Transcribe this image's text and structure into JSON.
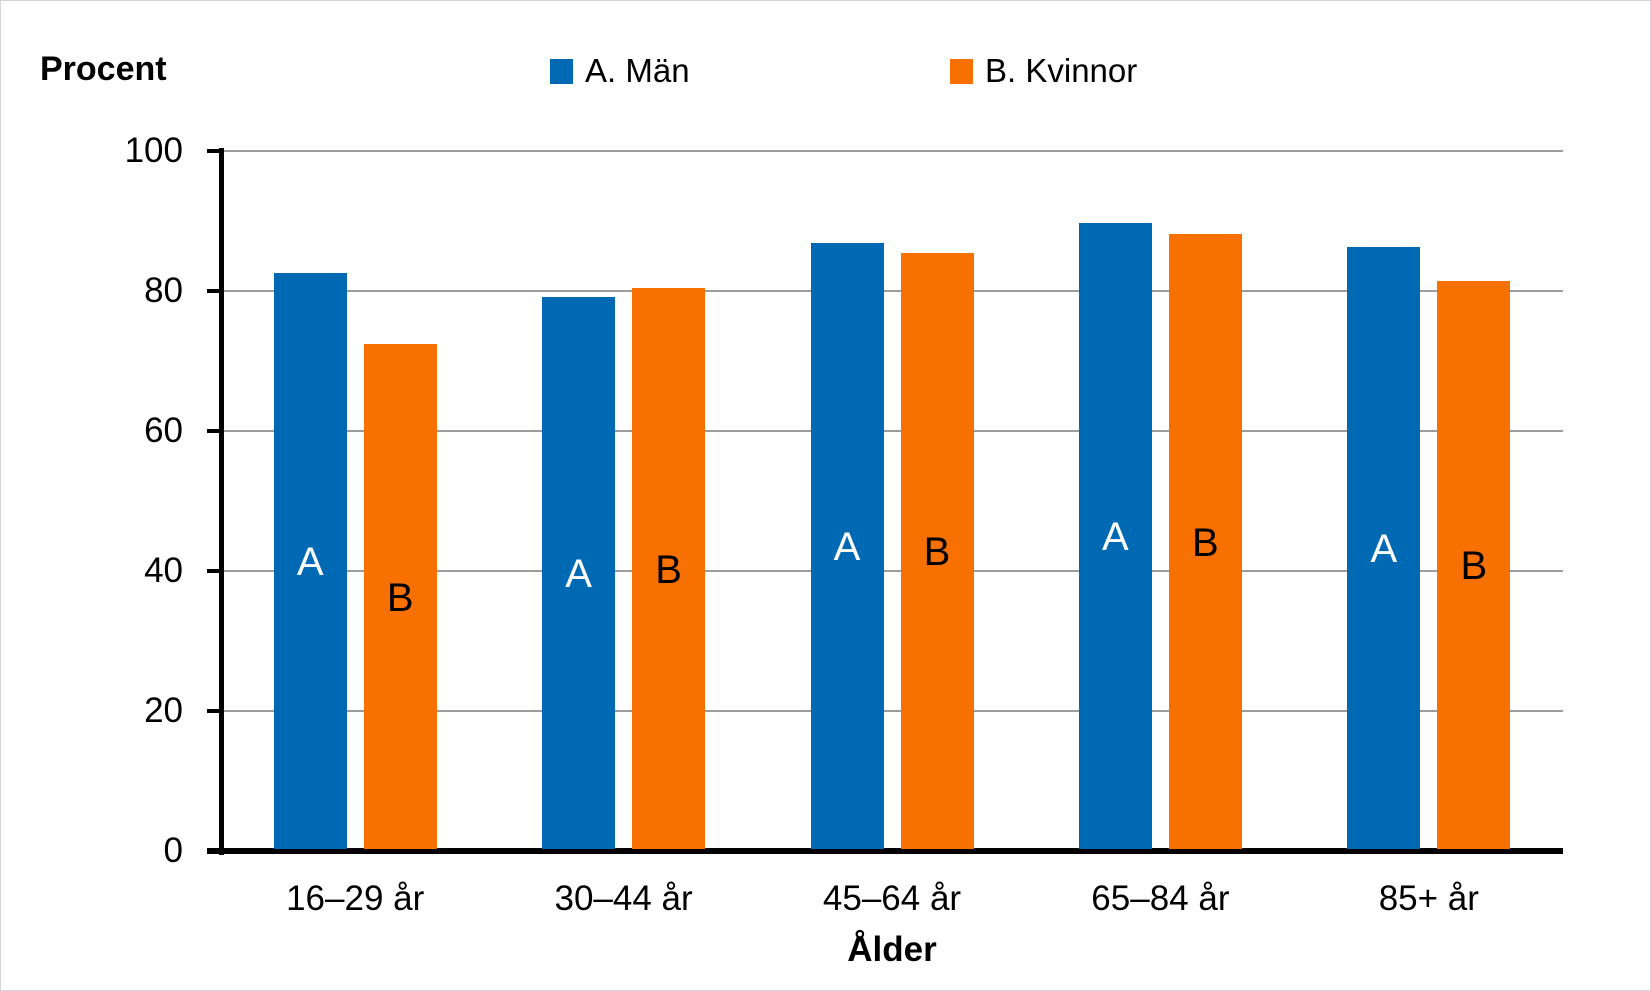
{
  "chart_data": {
    "type": "bar",
    "title": "",
    "ylabel": "Procent",
    "xlabel": "Ålder",
    "categories": [
      "16–29 år",
      "30–44 år",
      "45–64 år",
      "65–84 år",
      "85+ år"
    ],
    "series": [
      {
        "name": "A. Män",
        "letter": "A",
        "color": "#0069B4",
        "label_color": "#FFFFFF",
        "values": [
          82.6,
          79.2,
          86.9,
          89.7,
          86.3
        ]
      },
      {
        "name": "B. Kvinnor",
        "letter": "B",
        "color": "#F87000",
        "label_color": "#000000",
        "values": [
          72.4,
          80.4,
          85.4,
          88.1,
          81.4
        ]
      }
    ],
    "ylim": [
      0,
      100
    ],
    "yticks": [
      0,
      20,
      40,
      60,
      80,
      100
    ],
    "ytick_labels": [
      "0",
      "20",
      "40",
      "60",
      "80",
      "100"
    ],
    "grid": true,
    "gridline_color": "#9C9C9C",
    "axis_color": "#000000",
    "background": "#FFFFFF",
    "legend_position": "top"
  }
}
